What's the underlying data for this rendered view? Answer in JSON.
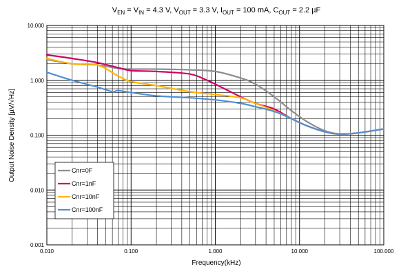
{
  "chart_data": {
    "type": "line",
    "title": {
      "segments": [
        {
          "t": "V",
          "sub": false
        },
        {
          "t": "EN",
          "sub": true
        },
        {
          "t": " = V",
          "sub": false
        },
        {
          "t": "IN",
          "sub": true
        },
        {
          "t": " = 4.3 V, V",
          "sub": false
        },
        {
          "t": "OUT",
          "sub": true
        },
        {
          "t": " = 3.3 V, I",
          "sub": false
        },
        {
          "t": "OUT",
          "sub": true
        },
        {
          "t": " = 100 mA, C",
          "sub": false
        },
        {
          "t": "OUT",
          "sub": true
        },
        {
          "t": " = 2.2 µF",
          "sub": false
        }
      ]
    },
    "xlabel": "Frequency(kHz)",
    "ylabel": "Output Noise Density [µV/√Hz]",
    "x_scale": "log",
    "y_scale": "log",
    "xlim": [
      0.01,
      100
    ],
    "ylim": [
      0.001,
      10
    ],
    "x_ticks": [
      {
        "value": 0.01,
        "label": "0.010"
      },
      {
        "value": 0.1,
        "label": "0.100"
      },
      {
        "value": 1,
        "label": "1.000"
      },
      {
        "value": 10,
        "label": "10.000"
      },
      {
        "value": 100,
        "label": "100.000"
      }
    ],
    "y_ticks": [
      {
        "value": 0.001,
        "label": "0.001"
      },
      {
        "value": 0.01,
        "label": "0.010"
      },
      {
        "value": 0.1,
        "label": "0.100"
      },
      {
        "value": 1,
        "label": "1.000"
      },
      {
        "value": 10,
        "label": "10.000"
      }
    ],
    "grid": true,
    "legend_position": "bottom-left",
    "series": [
      {
        "name": "Cnr=0F",
        "color": "#8c8c8c",
        "x": [
          0.01,
          0.02,
          0.04,
          0.07,
          0.1,
          0.2,
          0.5,
          1,
          2,
          3,
          5,
          8,
          12,
          20,
          30,
          50,
          100
        ],
        "y": [
          2.4,
          2.0,
          1.9,
          1.65,
          1.6,
          1.6,
          1.55,
          1.45,
          1.1,
          0.85,
          0.5,
          0.28,
          0.18,
          0.12,
          0.105,
          0.11,
          0.13
        ]
      },
      {
        "name": "Cnr=1nF",
        "color": "#cc0066",
        "x": [
          0.01,
          0.02,
          0.04,
          0.07,
          0.1,
          0.2,
          0.5,
          0.8,
          1,
          2,
          3,
          5,
          8,
          12,
          20,
          30,
          50,
          100
        ],
        "y": [
          2.9,
          2.5,
          2.1,
          1.7,
          1.5,
          1.45,
          1.3,
          1.0,
          0.85,
          0.5,
          0.38,
          0.3,
          0.2,
          0.15,
          0.115,
          0.105,
          0.11,
          0.13
        ]
      },
      {
        "name": "Cnr=10nF",
        "color": "#ffb300",
        "x": [
          0.01,
          0.02,
          0.04,
          0.07,
          0.1,
          0.2,
          0.5,
          1,
          2,
          3,
          5,
          8,
          12,
          20,
          30,
          50,
          100
        ],
        "y": [
          2.5,
          2.0,
          1.9,
          1.2,
          0.95,
          0.8,
          0.62,
          0.55,
          0.48,
          0.38,
          0.28,
          0.2,
          0.15,
          0.115,
          0.105,
          0.11,
          0.13
        ]
      },
      {
        "name": "Cnr=100nF",
        "color": "#4f8fd6",
        "x": [
          0.01,
          0.02,
          0.04,
          0.06,
          0.07,
          0.1,
          0.2,
          0.5,
          1,
          2,
          3,
          5,
          8,
          12,
          20,
          30,
          50,
          100
        ],
        "y": [
          1.4,
          1.0,
          0.75,
          0.62,
          0.65,
          0.6,
          0.52,
          0.48,
          0.44,
          0.38,
          0.33,
          0.27,
          0.2,
          0.15,
          0.115,
          0.105,
          0.11,
          0.13
        ]
      }
    ]
  }
}
